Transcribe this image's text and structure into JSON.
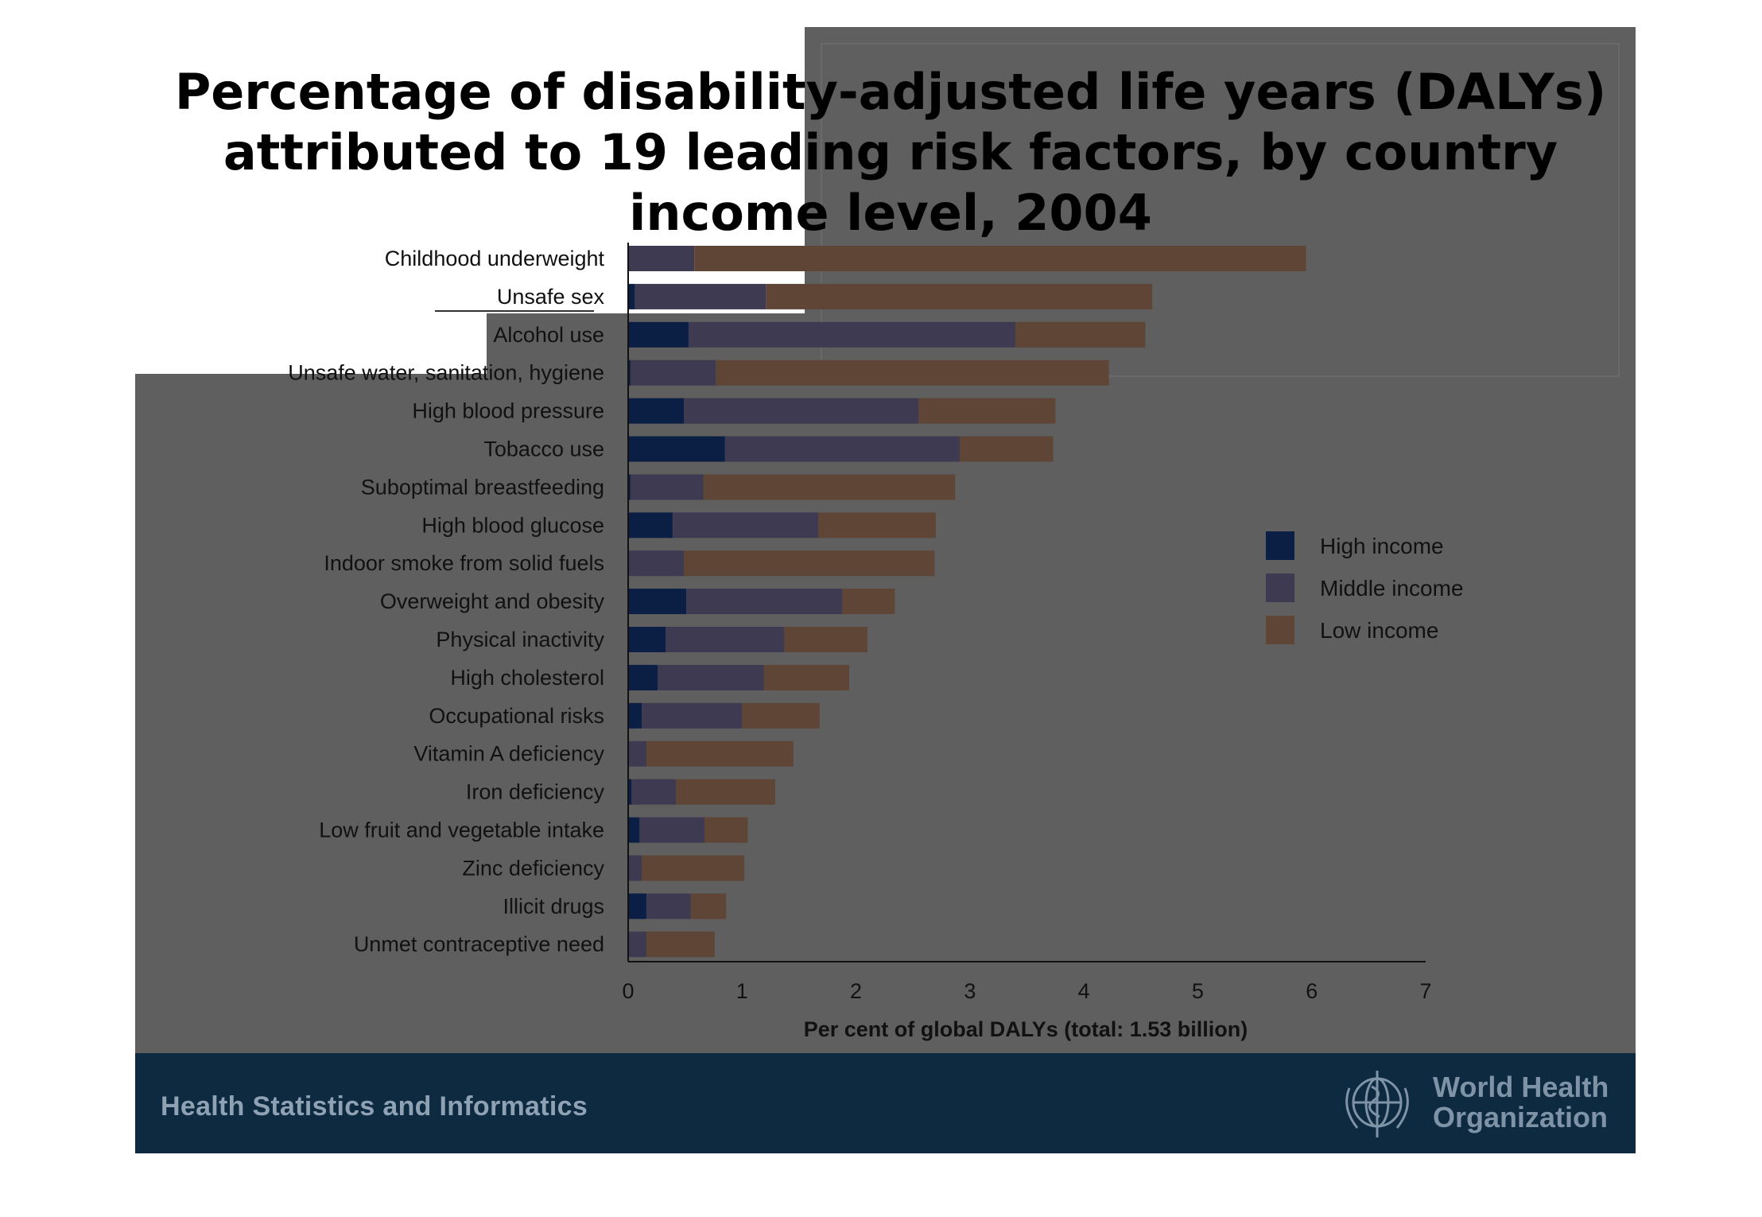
{
  "title_lines": [
    "Percentage of disability-adjusted life years (DALYs)",
    "attributed to 19 leading risk factors, by country",
    "income level, 2004"
  ],
  "footer": {
    "left_text": "Health Statistics and Informatics",
    "org_line1": "World Health",
    "org_line2": "Organization"
  },
  "colors": {
    "high_income": "#0b1f45",
    "middle_income": "#3d3a52",
    "low_income": "#5f4535",
    "axis": "#111111"
  },
  "chart_data": {
    "type": "bar",
    "orientation": "horizontal",
    "stacked": true,
    "xlabel": "Per cent of global DALYs (total: 1.53 billion)",
    "xlim": [
      0,
      7
    ],
    "xticks": [
      "0",
      "1",
      "2",
      "3",
      "4",
      "5",
      "6",
      "7"
    ],
    "legend_position": "right",
    "categories": [
      "Childhood underweight",
      "Unsafe sex",
      "Alcohol use",
      "Unsafe water, sanitation, hygiene",
      "High blood pressure",
      "Tobacco use",
      "Suboptimal breastfeeding",
      "High blood glucose",
      "Indoor smoke from solid fuels",
      "Overweight and obesity",
      "Physical inactivity",
      "High cholesterol",
      "Occupational risks",
      "Vitamin A deficiency",
      "Iron deficiency",
      "Low fruit and vegetable intake",
      "Zinc deficiency",
      "Illicit drugs",
      "Unmet contraceptive need"
    ],
    "series": [
      {
        "name": "High income",
        "values": [
          0.0,
          0.06,
          0.53,
          0.02,
          0.49,
          0.85,
          0.02,
          0.39,
          0.0,
          0.51,
          0.33,
          0.26,
          0.12,
          0.0,
          0.03,
          0.1,
          0.0,
          0.16,
          0.0
        ]
      },
      {
        "name": "Middle income",
        "values": [
          0.58,
          1.15,
          2.87,
          0.75,
          2.06,
          2.06,
          0.64,
          1.28,
          0.49,
          1.37,
          1.04,
          0.93,
          0.88,
          0.16,
          0.39,
          0.57,
          0.12,
          0.39,
          0.16
        ]
      },
      {
        "name": "Low income",
        "values": [
          5.37,
          3.39,
          1.14,
          3.45,
          1.2,
          0.82,
          2.21,
          1.03,
          2.2,
          0.46,
          0.73,
          0.75,
          0.68,
          1.29,
          0.87,
          0.38,
          0.9,
          0.31,
          0.6
        ]
      }
    ]
  }
}
